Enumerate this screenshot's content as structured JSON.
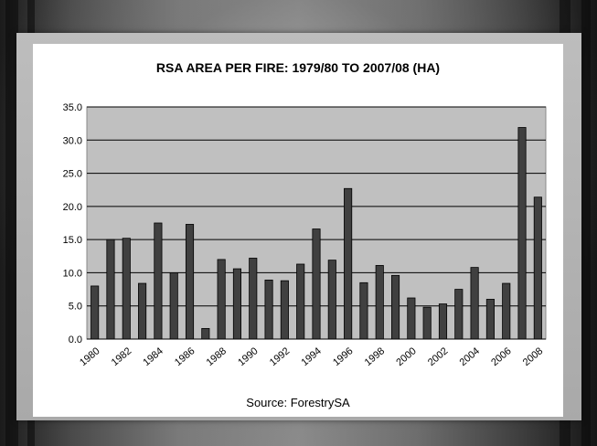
{
  "chart_data": {
    "type": "bar",
    "title": "RSA AREA PER FIRE: 1979/80 TO 2007/08 (HA)",
    "source": "Source: ForestrySA",
    "xlabel": "",
    "ylabel": "",
    "ylim": [
      0,
      35
    ],
    "yticks": [
      "0.0",
      "5.0",
      "10.0",
      "15.0",
      "20.0",
      "25.0",
      "30.0",
      "35.0"
    ],
    "x": [
      1980,
      1981,
      1982,
      1983,
      1984,
      1985,
      1986,
      1987,
      1988,
      1989,
      1990,
      1991,
      1992,
      1993,
      1994,
      1995,
      1996,
      1997,
      1998,
      1999,
      2000,
      2001,
      2002,
      2003,
      2004,
      2005,
      2006,
      2007,
      2008
    ],
    "xtick_labels": [
      "1980",
      "1982",
      "1984",
      "1986",
      "1988",
      "1990",
      "1992",
      "1994",
      "1996",
      "1998",
      "2000",
      "2002",
      "2004",
      "2006",
      "2008"
    ],
    "values": [
      8.0,
      15.0,
      15.2,
      8.4,
      17.5,
      10.0,
      17.3,
      1.6,
      12.0,
      10.6,
      12.2,
      8.9,
      8.8,
      11.3,
      16.6,
      11.9,
      22.7,
      8.5,
      11.1,
      9.6,
      6.2,
      4.8,
      5.3,
      7.5,
      10.8,
      6.0,
      8.4,
      31.9,
      21.4
    ],
    "grid": true,
    "plot_background": "#c0c0c0",
    "bar_color": "#404040",
    "legend": "none"
  }
}
